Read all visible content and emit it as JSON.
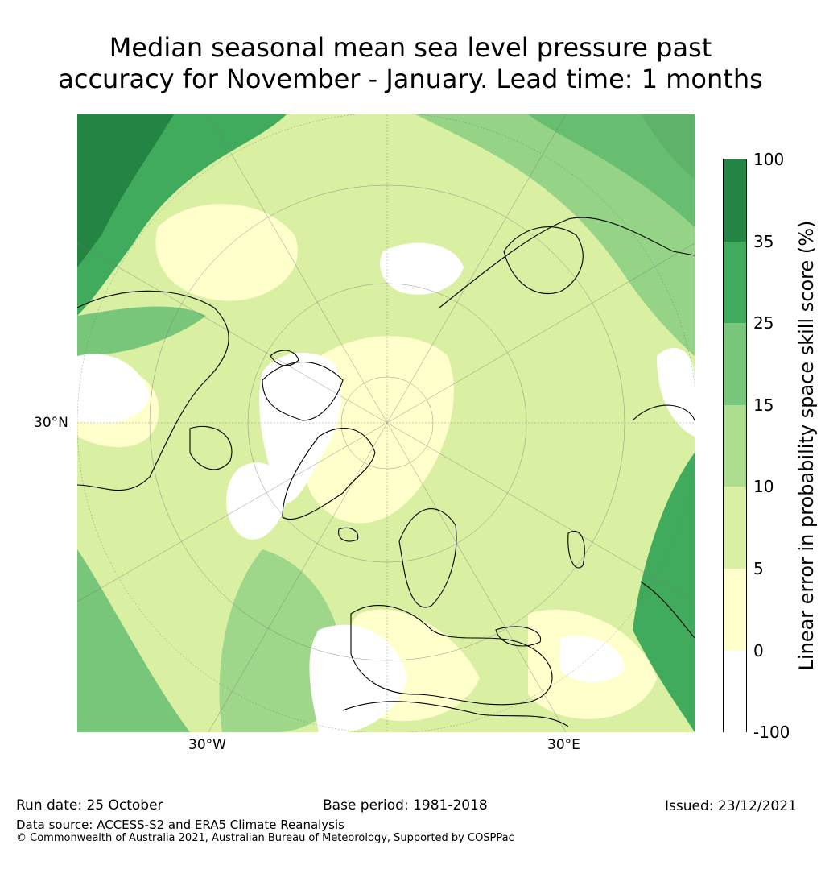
{
  "title": {
    "line1": "Median seasonal mean sea level pressure past",
    "line2": "accuracy for November - January. Lead time: 1 months"
  },
  "map": {
    "lat_label": "30°N",
    "lon_labels": [
      "30°W",
      "30°E"
    ]
  },
  "colorbar": {
    "title": "Linear error in probability space skill score (%)",
    "labels": [
      "100",
      "35",
      "25",
      "15",
      "10",
      "5",
      "0",
      "-100"
    ],
    "colors": [
      "#238443",
      "#41ab5d",
      "#78c679",
      "#addd8e",
      "#d9f0a3",
      "#ffffcc",
      "#ffffff"
    ]
  },
  "footer": {
    "run_date": "Run date: 25 October",
    "base_period": "Base period: 1981-2018",
    "issued": "Issued: 23/12/2021",
    "data_source": "Data source: ACCESS-S2 and ERA5 Climate Reanalysis",
    "copyright": "© Commonwealth of Australia 2021, Australian Bureau of Meteorology, Supported by COSPPac"
  }
}
